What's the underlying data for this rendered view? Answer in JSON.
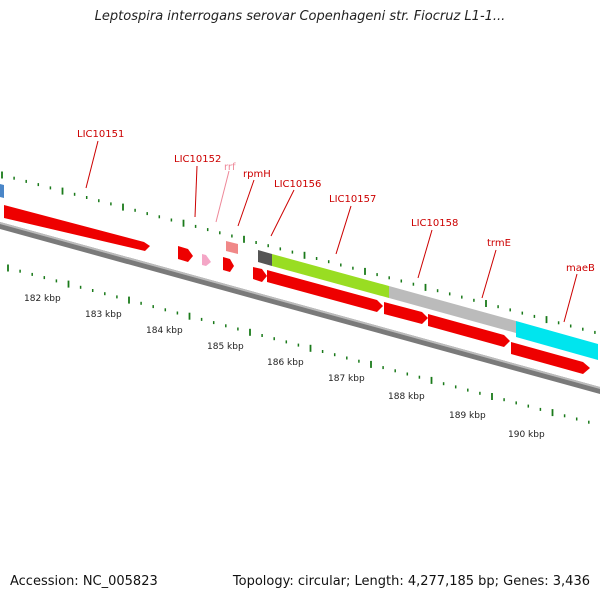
{
  "title": "Leptospira interrogans serovar Copenhageni str. Fiocruz L1-1...",
  "footer": {
    "accession": "Accession: NC_005823",
    "stats": "Topology: circular; Length: 4,277,185 bp; Genes: 3,436"
  },
  "colors": {
    "backbone": "#777777",
    "tick": "#1a7a1a",
    "cds": "#ee0000",
    "label": "#cc0000",
    "rna_label": "#ee8899",
    "rna": "#f4a6c6",
    "trna": "#f08888"
  },
  "gene_labels": [
    {
      "name": "LIC10151",
      "color_key": "label"
    },
    {
      "name": "LIC10152",
      "color_key": "label"
    },
    {
      "name": "rrf",
      "color_key": "rna_label"
    },
    {
      "name": "rpmH",
      "color_key": "label"
    },
    {
      "name": "LIC10156",
      "color_key": "label"
    },
    {
      "name": "LIC10157",
      "color_key": "label"
    },
    {
      "name": "LIC10158",
      "color_key": "label"
    },
    {
      "name": "trmE",
      "color_key": "label"
    },
    {
      "name": "maeB",
      "color_key": "label"
    }
  ],
  "kbp_labels": [
    "182 kbp",
    "183 kbp",
    "184 kbp",
    "185 kbp",
    "186 kbp",
    "187 kbp",
    "188 kbp",
    "189 kbp",
    "190 kbp"
  ]
}
